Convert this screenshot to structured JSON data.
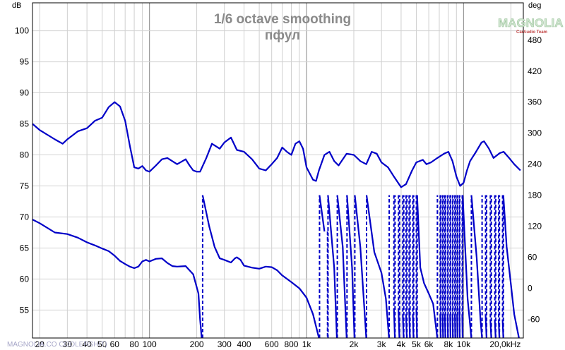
{
  "chart_data": {
    "type": "line",
    "title": "1/6 octave smoothing",
    "subtitle": "пфул",
    "x_axis": {
      "scale": "log",
      "range": [
        18,
        24000
      ],
      "unit_label": "",
      "ticks": [
        {
          "value": 20,
          "label": "20"
        },
        {
          "value": 30,
          "label": "30"
        },
        {
          "value": 40,
          "label": "40"
        },
        {
          "value": 50,
          "label": "50"
        },
        {
          "value": 60,
          "label": "60"
        },
        {
          "value": 80,
          "label": "80"
        },
        {
          "value": 100,
          "label": "100"
        },
        {
          "value": 200,
          "label": "200"
        },
        {
          "value": 300,
          "label": "300"
        },
        {
          "value": 400,
          "label": "400"
        },
        {
          "value": 600,
          "label": "600"
        },
        {
          "value": 800,
          "label": "800"
        },
        {
          "value": 1000,
          "label": "1k"
        },
        {
          "value": 2000,
          "label": "2k"
        },
        {
          "value": 3000,
          "label": "3k"
        },
        {
          "value": 4000,
          "label": "4k"
        },
        {
          "value": 5000,
          "label": "5k"
        },
        {
          "value": 6000,
          "label": "6k"
        },
        {
          "value": 8000,
          "label": "8k"
        },
        {
          "value": 10000,
          "label": "10k"
        },
        {
          "value": 20000,
          "label": "20,0kHz"
        }
      ]
    },
    "y_axis_left": {
      "unit_label": "dB",
      "range": [
        50.5,
        104.5
      ],
      "ticks": [
        55,
        60,
        65,
        70,
        75,
        80,
        85,
        90,
        95,
        100
      ]
    },
    "y_axis_right": {
      "unit_label": "deg",
      "range": [
        -96,
        552
      ],
      "ticks": [
        -60,
        0,
        60,
        120,
        180,
        240,
        300,
        360,
        420,
        480
      ]
    },
    "grid": true,
    "series": [
      {
        "axis": "left",
        "color": "#0000c8",
        "style": "solid",
        "points": [
          [
            18,
            85.0
          ],
          [
            20,
            84.0
          ],
          [
            25,
            82.5
          ],
          [
            28,
            81.8
          ],
          [
            30,
            82.5
          ],
          [
            35,
            83.8
          ],
          [
            40,
            84.3
          ],
          [
            45,
            85.5
          ],
          [
            50,
            86.0
          ],
          [
            55,
            87.7
          ],
          [
            60,
            88.5
          ],
          [
            65,
            87.8
          ],
          [
            70,
            85.5
          ],
          [
            75,
            81.5
          ],
          [
            80,
            78.0
          ],
          [
            85,
            77.8
          ],
          [
            90,
            78.2
          ],
          [
            95,
            77.5
          ],
          [
            100,
            77.3
          ],
          [
            110,
            78.3
          ],
          [
            120,
            79.3
          ],
          [
            130,
            79.5
          ],
          [
            150,
            78.5
          ],
          [
            170,
            79.3
          ],
          [
            180,
            78.3
          ],
          [
            190,
            77.5
          ],
          [
            200,
            77.3
          ],
          [
            210,
            77.3
          ],
          [
            230,
            79.5
          ],
          [
            250,
            81.8
          ],
          [
            280,
            81.0
          ],
          [
            300,
            82.0
          ],
          [
            330,
            82.8
          ],
          [
            360,
            80.8
          ],
          [
            400,
            80.5
          ],
          [
            450,
            79.3
          ],
          [
            500,
            77.8
          ],
          [
            550,
            77.5
          ],
          [
            600,
            78.5
          ],
          [
            650,
            79.5
          ],
          [
            700,
            81.2
          ],
          [
            750,
            80.5
          ],
          [
            800,
            80.0
          ],
          [
            850,
            81.8
          ],
          [
            900,
            82.2
          ],
          [
            950,
            81.0
          ],
          [
            1000,
            78.0
          ],
          [
            1100,
            76.0
          ],
          [
            1150,
            75.8
          ],
          [
            1200,
            77.5
          ],
          [
            1300,
            80.0
          ],
          [
            1400,
            80.5
          ],
          [
            1500,
            79.0
          ],
          [
            1600,
            78.3
          ],
          [
            1800,
            80.2
          ],
          [
            2000,
            80.0
          ],
          [
            2200,
            79.0
          ],
          [
            2400,
            78.5
          ],
          [
            2600,
            80.5
          ],
          [
            2800,
            80.2
          ],
          [
            3000,
            78.8
          ],
          [
            3300,
            78.0
          ],
          [
            3600,
            76.5
          ],
          [
            4000,
            74.8
          ],
          [
            4300,
            75.3
          ],
          [
            4700,
            77.5
          ],
          [
            5000,
            78.8
          ],
          [
            5500,
            79.2
          ],
          [
            5800,
            78.5
          ],
          [
            6200,
            78.8
          ],
          [
            6800,
            79.5
          ],
          [
            7500,
            80.2
          ],
          [
            8000,
            80.5
          ],
          [
            8500,
            79.0
          ],
          [
            9000,
            76.5
          ],
          [
            9500,
            75.0
          ],
          [
            10000,
            75.5
          ],
          [
            10500,
            77.5
          ],
          [
            11000,
            79.0
          ],
          [
            12000,
            80.5
          ],
          [
            13000,
            82.0
          ],
          [
            13500,
            82.2
          ],
          [
            14500,
            81.0
          ],
          [
            15500,
            79.5
          ],
          [
            17000,
            80.3
          ],
          [
            18000,
            80.5
          ],
          [
            19500,
            79.5
          ],
          [
            21000,
            78.5
          ],
          [
            23000,
            77.5
          ]
        ]
      },
      {
        "axis": "right",
        "color": "#0000c8",
        "style": "phase",
        "points": [
          [
            18,
            133
          ],
          [
            20,
            126
          ],
          [
            25,
            108
          ],
          [
            30,
            105
          ],
          [
            35,
            98
          ],
          [
            40,
            89
          ],
          [
            45,
            83
          ],
          [
            50,
            77
          ],
          [
            55,
            72
          ],
          [
            60,
            63
          ],
          [
            65,
            53
          ],
          [
            70,
            47
          ],
          [
            75,
            42
          ],
          [
            80,
            39
          ],
          [
            85,
            42
          ],
          [
            90,
            52
          ],
          [
            95,
            55
          ],
          [
            100,
            52
          ],
          [
            110,
            57
          ],
          [
            120,
            58
          ],
          [
            130,
            49
          ],
          [
            140,
            43
          ],
          [
            150,
            42
          ],
          [
            170,
            43
          ],
          [
            190,
            27
          ],
          [
            205,
            -10
          ],
          [
            210,
            -60
          ],
          [
            215,
            -96
          ],
          [
            218,
            180
          ],
          [
            225,
            160
          ],
          [
            240,
            120
          ],
          [
            260,
            80
          ],
          [
            280,
            58
          ],
          [
            300,
            55
          ],
          [
            330,
            50
          ],
          [
            350,
            58
          ],
          [
            360,
            60
          ],
          [
            380,
            55
          ],
          [
            400,
            44
          ],
          [
            450,
            40
          ],
          [
            500,
            38
          ],
          [
            550,
            42
          ],
          [
            600,
            41
          ],
          [
            650,
            35
          ],
          [
            700,
            25
          ],
          [
            800,
            12
          ],
          [
            900,
            0
          ],
          [
            1000,
            -18
          ],
          [
            1100,
            -50
          ],
          [
            1200,
            -96
          ],
          [
            1210,
            180
          ],
          [
            1300,
            110
          ],
          [
            1360,
            -96
          ],
          [
            1370,
            180
          ],
          [
            1500,
            40
          ],
          [
            1560,
            -96
          ],
          [
            1570,
            180
          ],
          [
            1700,
            80
          ],
          [
            1800,
            -96
          ],
          [
            1810,
            180
          ],
          [
            1950,
            40
          ],
          [
            2020,
            -96
          ],
          [
            2030,
            180
          ],
          [
            2200,
            80
          ],
          [
            2400,
            -96
          ],
          [
            2410,
            180
          ],
          [
            2700,
            70
          ],
          [
            3000,
            30
          ],
          [
            3200,
            -20
          ],
          [
            3350,
            -96
          ],
          [
            3360,
            180
          ],
          [
            3600,
            -40
          ],
          [
            3650,
            -96
          ],
          [
            3660,
            180
          ],
          [
            3850,
            -40
          ],
          [
            3900,
            -96
          ],
          [
            3910,
            180
          ],
          [
            4100,
            -50
          ],
          [
            4150,
            -96
          ],
          [
            4160,
            180
          ],
          [
            4300,
            -50
          ],
          [
            4350,
            -96
          ],
          [
            4360,
            180
          ],
          [
            4500,
            -40
          ],
          [
            4550,
            -96
          ],
          [
            4560,
            180
          ],
          [
            4750,
            -50
          ],
          [
            4800,
            -96
          ],
          [
            4810,
            180
          ],
          [
            5000,
            -40
          ],
          [
            5050,
            -96
          ],
          [
            5060,
            180
          ],
          [
            5300,
            40
          ],
          [
            5600,
            10
          ],
          [
            6000,
            -10
          ],
          [
            6400,
            -30
          ],
          [
            6800,
            -96
          ],
          [
            6810,
            180
          ],
          [
            7100,
            -50
          ],
          [
            7150,
            -96
          ],
          [
            7160,
            180
          ],
          [
            7350,
            -50
          ],
          [
            7400,
            -96
          ],
          [
            7410,
            180
          ],
          [
            7600,
            -50
          ],
          [
            7650,
            -96
          ],
          [
            7660,
            180
          ],
          [
            7900,
            -50
          ],
          [
            7950,
            -96
          ],
          [
            7960,
            180
          ],
          [
            8200,
            -50
          ],
          [
            8250,
            -96
          ],
          [
            8260,
            180
          ],
          [
            8500,
            -50
          ],
          [
            8550,
            -96
          ],
          [
            8560,
            180
          ],
          [
            8800,
            -50
          ],
          [
            8850,
            -96
          ],
          [
            8860,
            180
          ],
          [
            9100,
            -50
          ],
          [
            9150,
            -96
          ],
          [
            9160,
            180
          ],
          [
            9400,
            -40
          ],
          [
            9450,
            -96
          ],
          [
            9460,
            180
          ],
          [
            9800,
            -50
          ],
          [
            9850,
            -96
          ],
          [
            9860,
            180
          ],
          [
            10600,
            -20
          ],
          [
            11200,
            -96
          ],
          [
            11210,
            180
          ],
          [
            12100,
            60
          ],
          [
            12800,
            -60
          ],
          [
            13100,
            -96
          ],
          [
            13110,
            180
          ],
          [
            13800,
            -50
          ],
          [
            14000,
            -96
          ],
          [
            14010,
            180
          ],
          [
            14800,
            -60
          ],
          [
            15000,
            -96
          ],
          [
            15010,
            180
          ],
          [
            15800,
            -60
          ],
          [
            16000,
            -96
          ],
          [
            16010,
            180
          ],
          [
            16700,
            -60
          ],
          [
            16900,
            -96
          ],
          [
            16910,
            180
          ],
          [
            17700,
            -60
          ],
          [
            17900,
            -96
          ],
          [
            17910,
            180
          ],
          [
            18800,
            80
          ],
          [
            19800,
            20
          ],
          [
            21000,
            -50
          ],
          [
            22500,
            -96
          ]
        ]
      }
    ]
  },
  "watermark": {
    "logo_text": "MAGNOLIA",
    "logo_sub": "CarAudio Team",
    "footer_text": "MAGNOLIA.CO COOLERSHIT)"
  }
}
